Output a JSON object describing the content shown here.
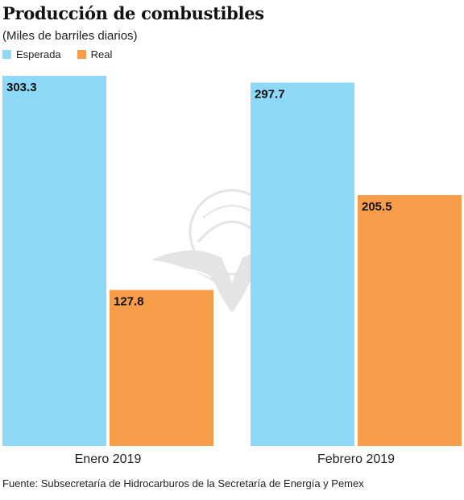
{
  "title": "Producción de combustibles",
  "subtitle": "(Miles de barriles diarios)",
  "source": "Fuente: Subsecretaría de Hidrocarburos de la Secretaría de Energía y Pemex",
  "colors": {
    "esperada": "#8ed8f8",
    "real": "#f79c48",
    "watermark": "#cfcfcf"
  },
  "chart_data": {
    "type": "bar",
    "categories": [
      "Enero 2019",
      "Febrero 2019"
    ],
    "series": [
      {
        "name": "Esperada",
        "values": [
          303.3,
          297.7
        ],
        "labels": [
          "303.3",
          "297.7"
        ]
      },
      {
        "name": "Real",
        "values": [
          127.8,
          205.5
        ],
        "labels": [
          "127.8",
          "205.5"
        ]
      }
    ],
    "ylim": [
      0,
      303.3
    ],
    "legend_position": "top-left",
    "grid": false
  }
}
